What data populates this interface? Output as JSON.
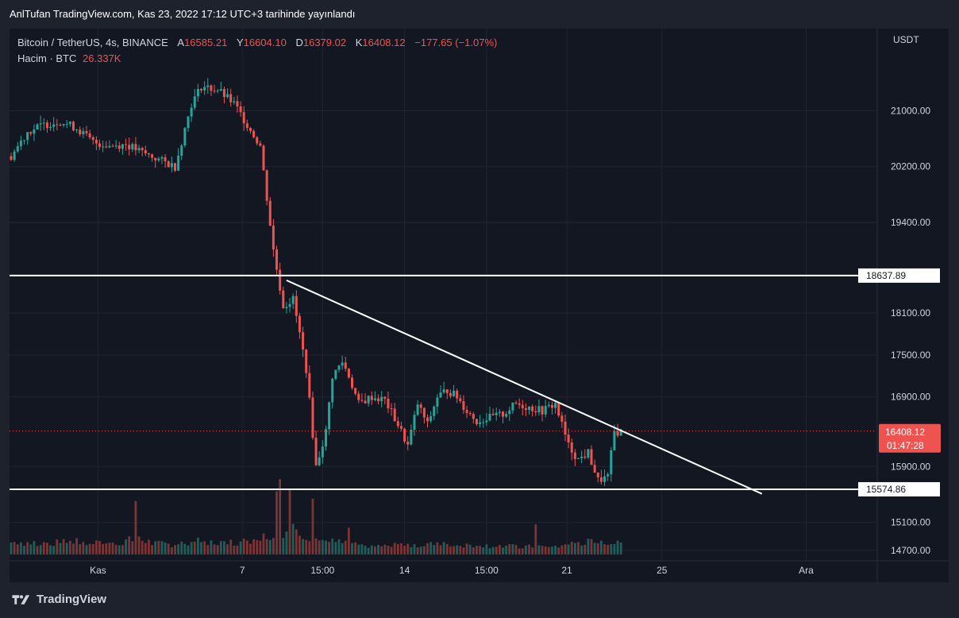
{
  "header": {
    "published": "AnlTufan TradingView.com, Kas 23, 2022 17:12 UTC+3 tarihinde yayınlandı"
  },
  "legend": {
    "symbol": "Bitcoin / TetherUS, 4s, BINANCE",
    "open_label": "A",
    "open": "16585.21",
    "high_label": "Y",
    "high": "16604.10",
    "low_label": "D",
    "low": "16379.02",
    "close_label": "K",
    "close": "16408.12",
    "change": "−177.65 (−1.07%)",
    "volume_label": "Hacim · BTC",
    "volume": "26.337K"
  },
  "price_axis": {
    "currency": "USDT",
    "levels": [
      "21000.00",
      "20200.00",
      "19400.00",
      "18100.00",
      "17500.00",
      "16900.00",
      "15900.00",
      "15100.00",
      "14700.00"
    ],
    "last_price": "16408.12",
    "countdown": "01:47:28"
  },
  "time_axis": {
    "labels": [
      "Kas",
      "7",
      "15:00",
      "14",
      "15:00",
      "21",
      "25",
      "Ara"
    ]
  },
  "footer": {
    "brand": "TradingView"
  },
  "colors": {
    "up": "#26a69a",
    "down": "#ef5350",
    "up_volume": "#1f5f5b",
    "down_volume": "#7a3535",
    "grid": "#1f2433",
    "line": "#ffffff"
  },
  "chart_data": {
    "type": "candlestick",
    "symbol": "BTCUSDT",
    "interval": "4h",
    "ylim": [
      14550,
      21950
    ],
    "price_ticks": [
      21000,
      20200,
      19400,
      18100,
      17500,
      16900,
      15900,
      15100,
      14700
    ],
    "horizontal_levels": [
      {
        "label": "18637.89",
        "value": 18637.89
      },
      {
        "label": "15574.86",
        "value": 15574.86
      }
    ],
    "trendline": {
      "from": [
        84,
        18570
      ],
      "to": [
        229,
        15510
      ]
    },
    "last_price_line": 16408.12,
    "time_label_positions": [
      {
        "label": "Kas",
        "bar": 26.5
      },
      {
        "label": "7",
        "bar": 70.5
      },
      {
        "label": "15:00",
        "bar": 95
      },
      {
        "label": "14",
        "bar": 120
      },
      {
        "label": "15:00",
        "bar": 145
      },
      {
        "label": "21",
        "bar": 169.5
      },
      {
        "label": "25",
        "bar": 198.5
      },
      {
        "label": "Ara",
        "bar": 242.5
      }
    ],
    "close_anchors": [
      [
        0,
        20350
      ],
      [
        5,
        20700
      ],
      [
        10,
        20800
      ],
      [
        15,
        20850
      ],
      [
        20,
        20750
      ],
      [
        25,
        20550
      ],
      [
        30,
        20500
      ],
      [
        35,
        20520
      ],
      [
        40,
        20400
      ],
      [
        45,
        20300
      ],
      [
        50,
        20200
      ],
      [
        55,
        21100
      ],
      [
        58,
        21350
      ],
      [
        63,
        21300
      ],
      [
        68,
        21100
      ],
      [
        72,
        20800
      ],
      [
        76,
        20500
      ],
      [
        80,
        19000
      ],
      [
        83,
        18200
      ],
      [
        86,
        18300
      ],
      [
        90,
        17300
      ],
      [
        93,
        15900
      ],
      [
        96,
        16400
      ],
      [
        98,
        17200
      ],
      [
        101,
        17400
      ],
      [
        103,
        17200
      ],
      [
        106,
        16800
      ],
      [
        110,
        16900
      ],
      [
        114,
        16850
      ],
      [
        118,
        16500
      ],
      [
        121,
        16200
      ],
      [
        124,
        16800
      ],
      [
        127,
        16500
      ],
      [
        130,
        16900
      ],
      [
        133,
        17000
      ],
      [
        136,
        16900
      ],
      [
        139,
        16700
      ],
      [
        142,
        16550
      ],
      [
        146,
        16600
      ],
      [
        150,
        16650
      ],
      [
        154,
        16800
      ],
      [
        158,
        16750
      ],
      [
        162,
        16700
      ],
      [
        166,
        16800
      ],
      [
        170,
        16200
      ],
      [
        173,
        16000
      ],
      [
        176,
        16100
      ],
      [
        179,
        15700
      ],
      [
        182,
        15750
      ],
      [
        184,
        16400
      ],
      [
        186,
        16400
      ]
    ],
    "volume_anchors": [
      [
        0,
        2.5
      ],
      [
        10,
        2.3
      ],
      [
        20,
        2.6
      ],
      [
        30,
        2.1
      ],
      [
        38,
        3.2
      ],
      [
        45,
        2.2
      ],
      [
        50,
        2.1
      ],
      [
        55,
        2.8
      ],
      [
        62,
        2.4
      ],
      [
        70,
        2.6
      ],
      [
        76,
        3.4
      ],
      [
        80,
        4.5
      ],
      [
        83,
        4.8
      ],
      [
        86,
        5.0
      ],
      [
        90,
        4.0
      ],
      [
        93,
        3.1
      ],
      [
        96,
        2.8
      ],
      [
        100,
        2.5
      ],
      [
        105,
        2.0
      ],
      [
        110,
        1.8
      ],
      [
        115,
        1.6
      ],
      [
        120,
        2.2
      ],
      [
        125,
        2.0
      ],
      [
        130,
        2.1
      ],
      [
        136,
        2.0
      ],
      [
        142,
        1.9
      ],
      [
        150,
        1.7
      ],
      [
        158,
        1.6
      ],
      [
        166,
        1.4
      ],
      [
        170,
        2.2
      ],
      [
        176,
        2.6
      ],
      [
        180,
        2.3
      ],
      [
        186,
        2.4
      ]
    ],
    "volume_spikes": [
      [
        38,
        11.0
      ],
      [
        81,
        13.0
      ],
      [
        82,
        15.5
      ],
      [
        85,
        13.5
      ],
      [
        92,
        11.5
      ],
      [
        103,
        5.5
      ],
      [
        160,
        6.2
      ]
    ],
    "volume_ylim": [
      0,
      18
    ],
    "bar_count": 187
  }
}
